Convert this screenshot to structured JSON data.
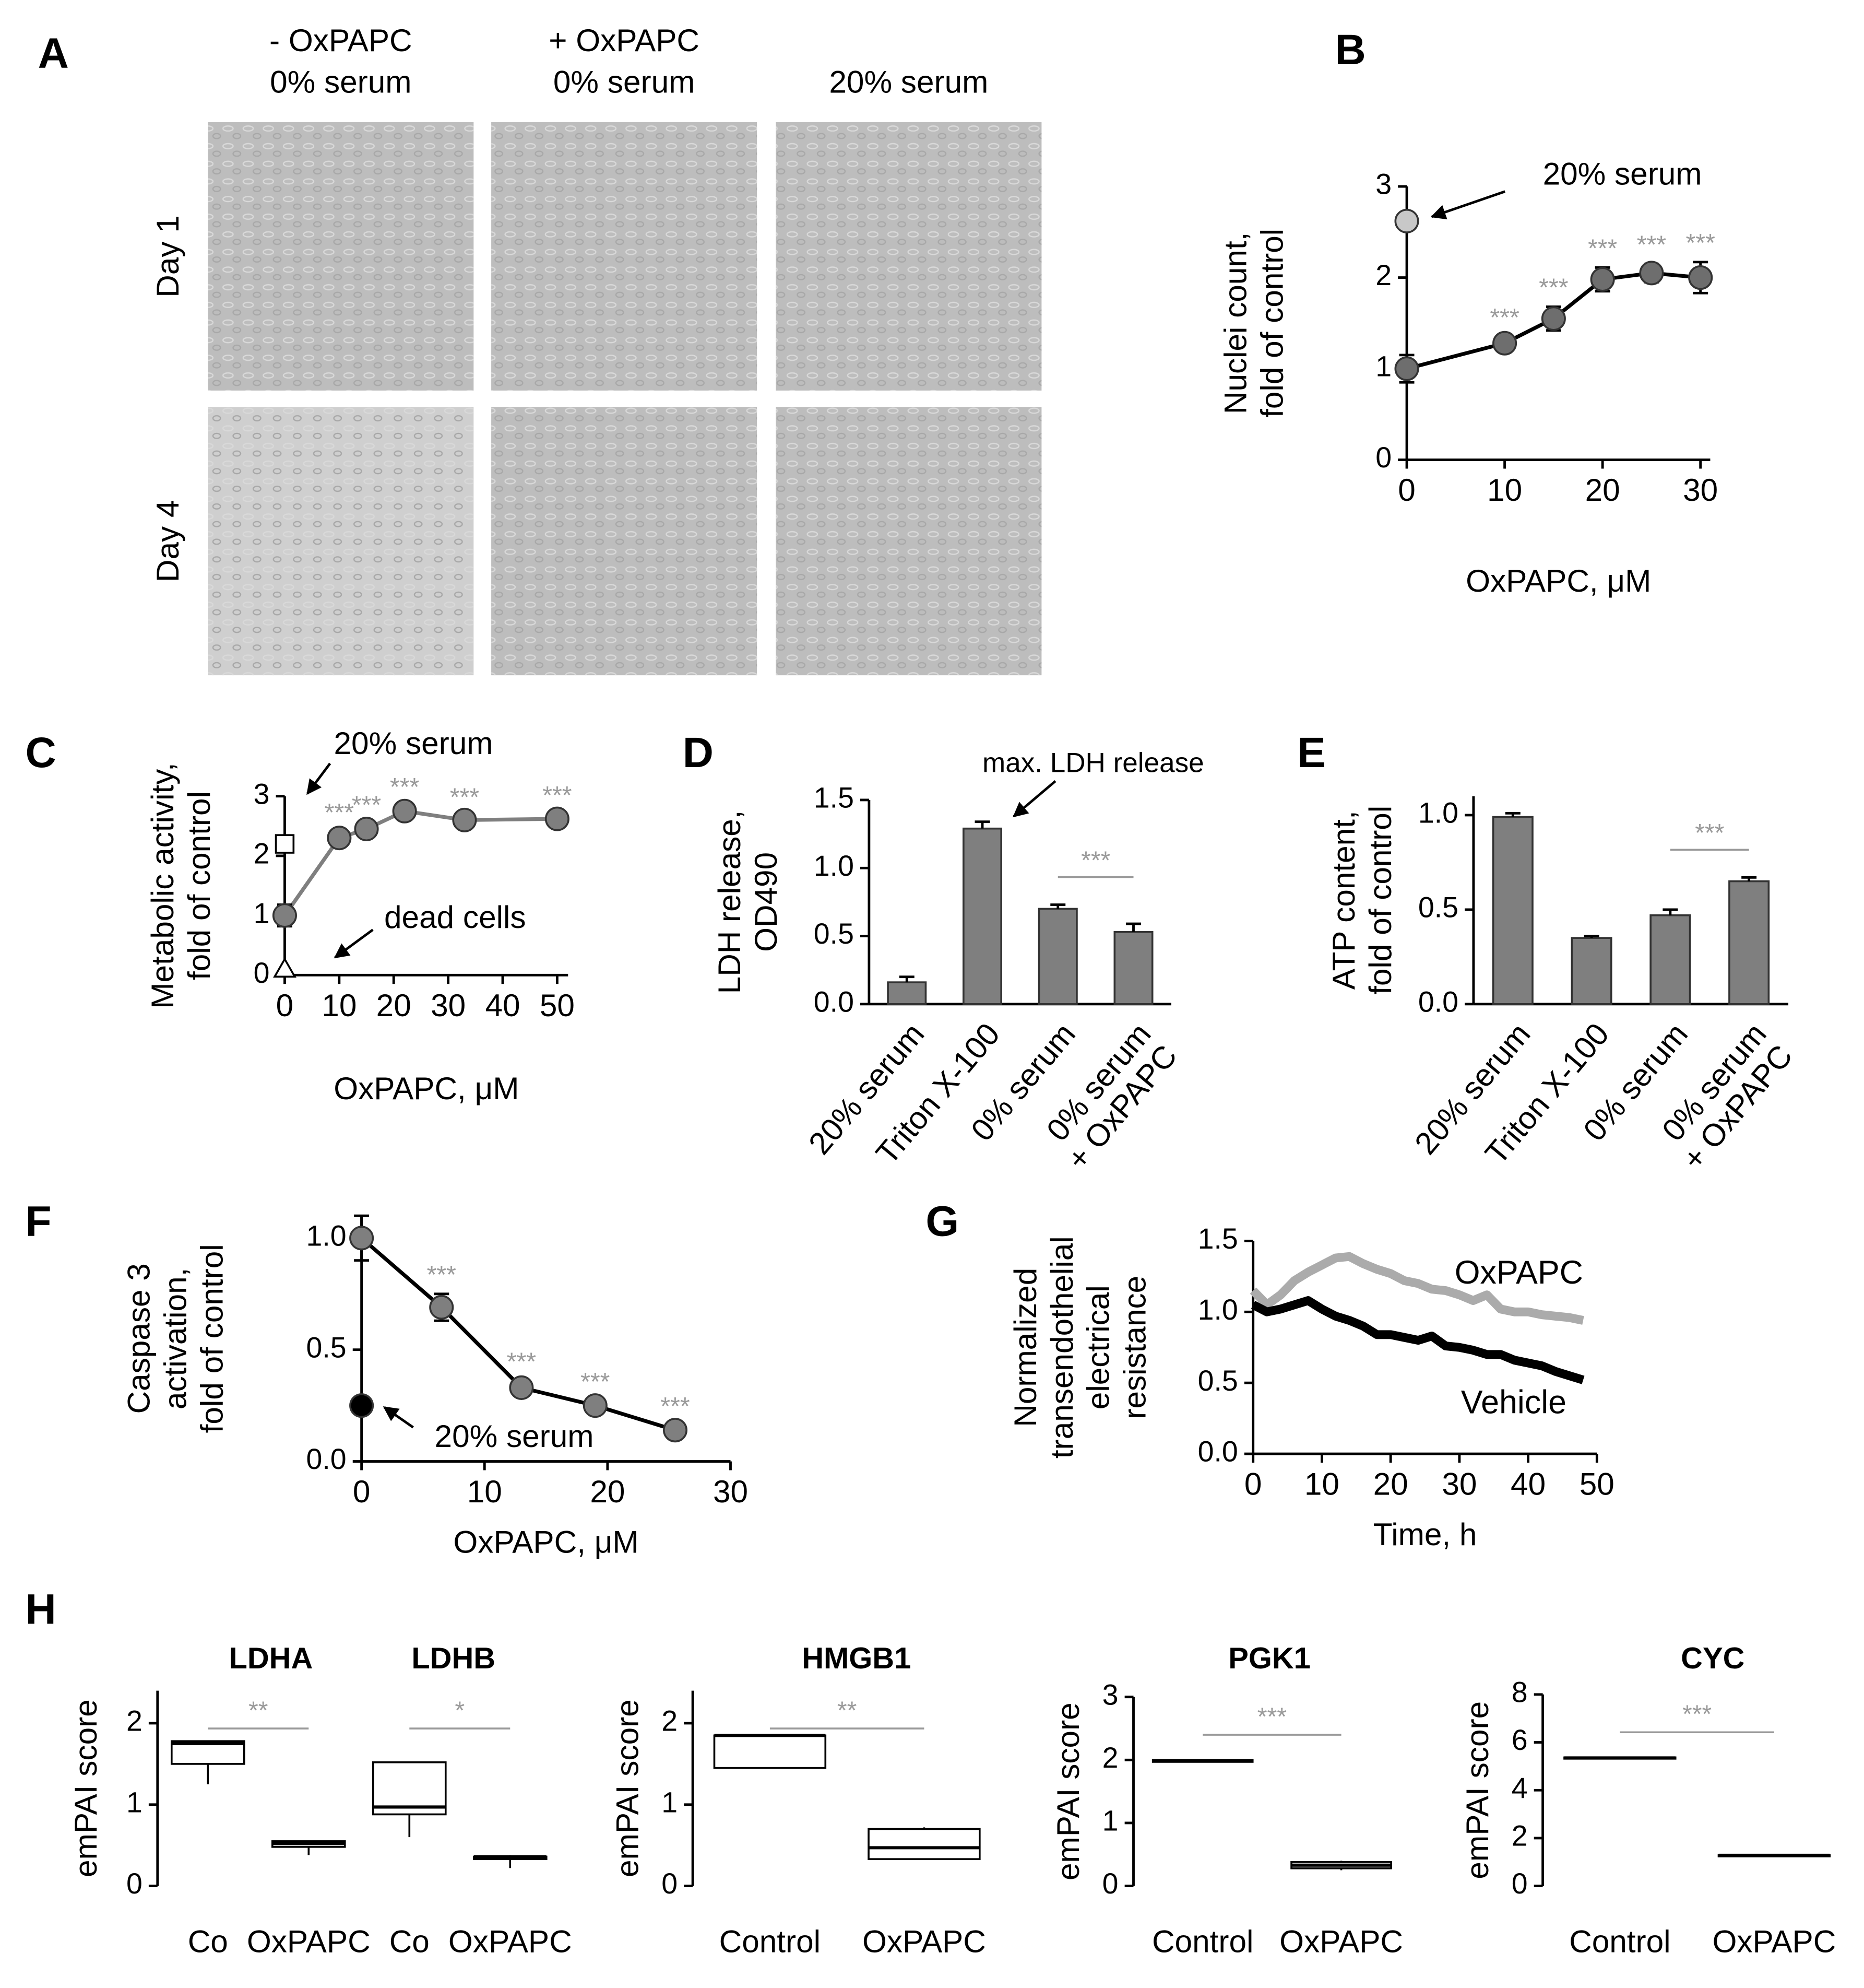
{
  "micrographs": {
    "label": "A",
    "column_headers": [
      [
        "- OxPAPC",
        "0% serum"
      ],
      [
        "+ OxPAPC",
        "0% serum"
      ],
      [
        "20% serum"
      ]
    ],
    "row_labels": [
      "Day 1",
      "Day 4"
    ]
  },
  "chart_data": [
    {
      "label": "B",
      "type": "line",
      "x": [
        0,
        10,
        15,
        20,
        25,
        30
      ],
      "values": [
        1,
        1.28,
        1.55,
        1.98,
        2.05,
        2.0
      ],
      "errors": [
        0.15,
        0.07,
        0.13,
        0.13,
        0.1,
        0.17
      ],
      "significance": [
        null,
        "***",
        "***",
        "***",
        "***",
        "***"
      ],
      "color": "#6e6e6e",
      "line_color": "#000000",
      "reference_points": [
        {
          "x": 0,
          "value": 2.62,
          "color": "#c8c8c8",
          "marker": "circle",
          "label": "20% serum"
        }
      ],
      "xlim": [
        0,
        31
      ],
      "ylim": [
        0,
        3
      ],
      "xticks": [
        0,
        10,
        20,
        30
      ],
      "yticks": [
        0,
        1,
        2,
        3
      ],
      "xlabel": "OxPAPC, μM",
      "ylabel": [
        "Nuclei count,",
        "fold of control"
      ]
    },
    {
      "label": "C",
      "type": "line",
      "x": [
        0,
        10,
        15,
        22,
        33,
        50
      ],
      "values": [
        1,
        2.3,
        2.45,
        2.75,
        2.6,
        2.62
      ],
      "errors": [
        0.18,
        0.1,
        0.08,
        0.08,
        0.06,
        0.07
      ],
      "significance": [
        null,
        "***",
        "***",
        "***",
        "***",
        "***"
      ],
      "color": "#7f7f7f",
      "line_color": "#7f7f7f",
      "reference_points": [
        {
          "x": 0,
          "value": 2.2,
          "color": "#ffffff",
          "marker": "square",
          "label": "20% serum"
        },
        {
          "x": 0,
          "value": 0.1,
          "color": "#ffffff",
          "marker": "triangle",
          "label": "dead cells"
        }
      ],
      "xlim": [
        0,
        52
      ],
      "ylim": [
        0,
        3
      ],
      "xticks": [
        0,
        10,
        20,
        30,
        40,
        50
      ],
      "yticks": [
        0,
        1,
        2,
        3
      ],
      "xlabel": "OxPAPC,  μM",
      "ylabel": [
        "Metabolic activity,",
        "fold of control"
      ]
    },
    {
      "label": "D",
      "type": "bar",
      "categories": [
        "20% serum",
        "Triton X-100",
        "0% serum",
        [
          "0% serum",
          "+ OxPAPC"
        ]
      ],
      "values": [
        0.16,
        1.29,
        0.7,
        0.53
      ],
      "errors": [
        0.04,
        0.05,
        0.03,
        0.06
      ],
      "color": "#7f7f7f",
      "comparisons": [
        {
          "between": [
            2,
            3
          ],
          "label": "***"
        }
      ],
      "annotations": [
        "max. LDH release"
      ],
      "ylim": [
        0,
        1.5
      ],
      "yticks": [
        {
          "value": 0,
          "label": "0.0"
        },
        0.5,
        {
          "value": 1,
          "label": "1.0"
        },
        1.5
      ],
      "ylabel": [
        "LDH release,",
        "OD490"
      ]
    },
    {
      "label": "E",
      "type": "bar",
      "categories": [
        "20% serum",
        "Triton X-100",
        "0% serum",
        [
          "0% serum",
          "+ OxPAPC"
        ]
      ],
      "values": [
        0.99,
        0.35,
        0.47,
        0.65
      ],
      "errors": [
        0.02,
        0.01,
        0.03,
        0.02
      ],
      "color": "#7f7f7f",
      "comparisons": [
        {
          "between": [
            2,
            3
          ],
          "label": "***"
        }
      ],
      "ylim": [
        0,
        1.1
      ],
      "yticks": [
        {
          "value": 0,
          "label": "0.0"
        },
        0.5,
        {
          "value": 1,
          "label": "1.0"
        }
      ],
      "ylabel": [
        "ATP content,",
        "fold of control"
      ]
    },
    {
      "label": "F",
      "type": "line",
      "x": [
        0,
        6.5,
        13,
        19,
        25.5
      ],
      "values": [
        1,
        0.69,
        0.33,
        0.25,
        0.14
      ],
      "errors": [
        0.1,
        0.06,
        0.03,
        0.02,
        0.02
      ],
      "significance": [
        null,
        "***",
        "***",
        "***",
        "***"
      ],
      "color": "#7f7f7f",
      "line_color": "#000000",
      "reference_points": [
        {
          "x": 0,
          "value": 0.25,
          "color": "#000000",
          "marker": "circle",
          "label": "20% serum"
        }
      ],
      "xlim": [
        0,
        30
      ],
      "ylim": [
        0,
        1.1
      ],
      "xticks": [
        0,
        10,
        20,
        30
      ],
      "yticks": [
        {
          "value": 0,
          "label": "0.0"
        },
        0.5,
        {
          "value": 1,
          "label": "1.0"
        }
      ],
      "xlabel": "OxPAPC, μM",
      "ylabel": [
        "Caspase 3",
        "activation,",
        "fold of control"
      ]
    },
    {
      "label": "G",
      "type": "line",
      "series": [
        {
          "name": "OxPAPC",
          "color": "#ababab",
          "x": [
            0,
            2,
            4,
            6,
            8,
            10,
            12,
            14,
            16,
            18,
            20,
            22,
            24,
            26,
            28,
            30,
            32,
            34,
            36,
            38,
            40,
            42,
            44,
            46,
            48
          ],
          "values": [
            1.15,
            1.05,
            1.12,
            1.22,
            1.28,
            1.33,
            1.38,
            1.39,
            1.34,
            1.3,
            1.27,
            1.22,
            1.2,
            1.16,
            1.15,
            1.12,
            1.08,
            1.12,
            1.02,
            1.0,
            1.0,
            0.98,
            0.97,
            0.96,
            0.94
          ]
        },
        {
          "name": "Vehicle",
          "color": "#000000",
          "x": [
            0,
            2,
            4,
            6,
            8,
            10,
            12,
            14,
            16,
            18,
            20,
            22,
            24,
            26,
            28,
            30,
            32,
            34,
            36,
            38,
            40,
            42,
            44,
            46,
            48
          ],
          "values": [
            1.05,
            1.0,
            1.02,
            1.05,
            1.08,
            1.02,
            0.97,
            0.94,
            0.9,
            0.84,
            0.84,
            0.82,
            0.8,
            0.83,
            0.76,
            0.75,
            0.73,
            0.7,
            0.7,
            0.66,
            0.64,
            0.62,
            0.58,
            0.55,
            0.52
          ]
        }
      ],
      "xlim": [
        0,
        50
      ],
      "ylim": [
        0,
        1.5
      ],
      "xticks": [
        0,
        10,
        20,
        30,
        40,
        50
      ],
      "yticks": [
        {
          "value": 0,
          "label": "0.0"
        },
        0.5,
        {
          "value": 1,
          "label": "1.0"
        },
        1.5
      ],
      "xlabel": "Time, h",
      "ylabel": [
        "Normalized",
        "transendothelial",
        "electrical",
        "resistance"
      ]
    },
    {
      "label": "H",
      "type": "box",
      "titles": [
        "LDHA",
        "LDHB"
      ],
      "categories": [
        "Co",
        "OxPAPC",
        "Co",
        "OxPAPC"
      ],
      "boxes": [
        {
          "min": 1.25,
          "q1": 1.5,
          "median": 1.75,
          "q3": 1.78,
          "max": 1.78
        },
        {
          "min": 0.38,
          "q1": 0.48,
          "median": 0.52,
          "q3": 0.55,
          "max": 0.55
        },
        {
          "min": 0.6,
          "q1": 0.88,
          "median": 0.97,
          "q3": 1.52,
          "max": 1.52
        },
        {
          "min": 0.22,
          "q1": 0.33,
          "median": 0.36,
          "q3": 0.36,
          "max": 0.38
        }
      ],
      "comparisons": [
        {
          "between": [
            0,
            1
          ],
          "label": "**"
        },
        {
          "between": [
            2,
            3
          ],
          "label": "*"
        }
      ],
      "ylim": [
        0,
        2.4
      ],
      "yticks": [
        0,
        1,
        2
      ],
      "ylabel": [
        "emPAI score"
      ]
    },
    {
      "type": "box",
      "titles": [
        "HMGB1"
      ],
      "categories": [
        "Control",
        "OxPAPC"
      ],
      "boxes": [
        {
          "min": 1.45,
          "q1": 1.45,
          "median": 1.85,
          "q3": 1.85,
          "max": 1.85
        },
        {
          "min": 0.33,
          "q1": 0.33,
          "median": 0.47,
          "q3": 0.7,
          "max": 0.72
        }
      ],
      "comparisons": [
        {
          "between": [
            0,
            1
          ],
          "label": "**"
        }
      ],
      "ylim": [
        0,
        2.4
      ],
      "yticks": [
        0,
        1,
        2
      ],
      "ylabel": [
        "emPAI score"
      ]
    },
    {
      "type": "box",
      "titles": [
        "PGK1"
      ],
      "categories": [
        "Control",
        "OxPAPC"
      ],
      "boxes": [
        {
          "min": 1.97,
          "q1": 1.97,
          "median": 1.99,
          "q3": 2.0,
          "max": 2.0
        },
        {
          "min": 0.25,
          "q1": 0.28,
          "median": 0.33,
          "q3": 0.38,
          "max": 0.4
        }
      ],
      "comparisons": [
        {
          "between": [
            0,
            1
          ],
          "label": "***"
        }
      ],
      "ylim": [
        0,
        3
      ],
      "yticks": [
        0,
        1,
        2,
        3
      ],
      "ylabel": [
        "emPAI score"
      ]
    },
    {
      "type": "box",
      "titles": [
        "CYC"
      ],
      "categories": [
        "Control",
        "OxPAPC"
      ],
      "boxes": [
        {
          "min": 5.3,
          "q1": 5.33,
          "median": 5.35,
          "q3": 5.37,
          "max": 5.4
        },
        {
          "min": 1.27,
          "q1": 1.27,
          "median": 1.28,
          "q3": 1.29,
          "max": 1.3
        }
      ],
      "comparisons": [
        {
          "between": [
            0,
            1
          ],
          "label": "***"
        }
      ],
      "ylim": [
        0,
        8
      ],
      "yticks": [
        0,
        2,
        4,
        6,
        8
      ],
      "ylabel": [
        "emPAI score"
      ]
    }
  ]
}
